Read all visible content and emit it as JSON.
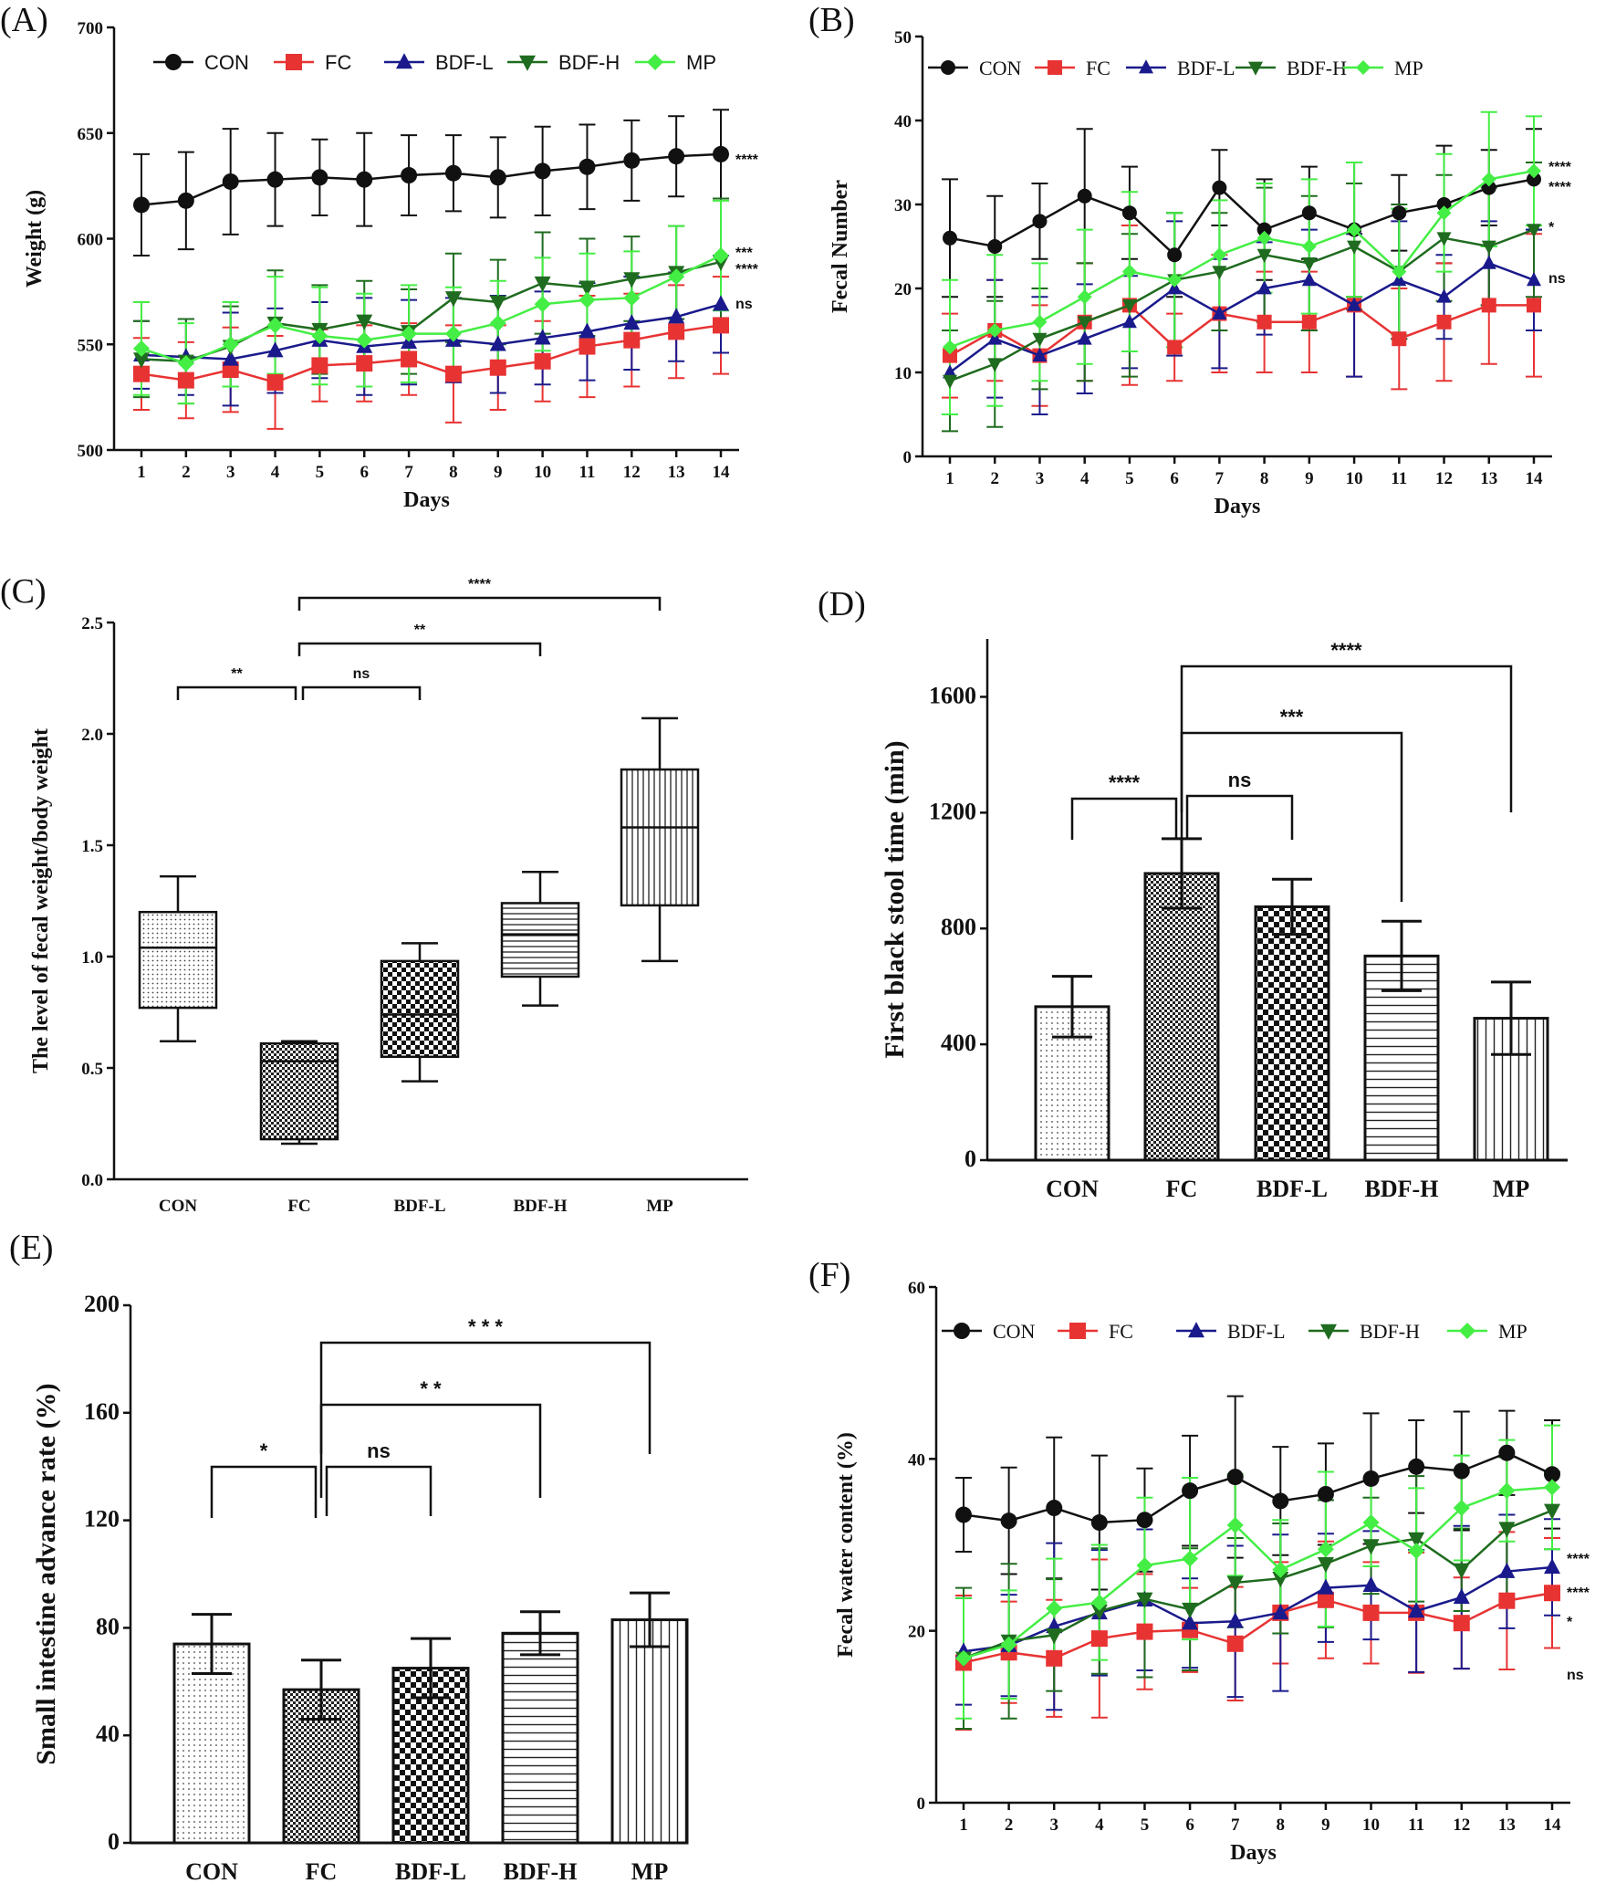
{
  "colors": {
    "CON": "#111111",
    "FC": "#e83333",
    "BDF-L": "#1a1a8c",
    "BDF-H": "#1f6b1f",
    "MP": "#44ee44"
  },
  "chart_data": [
    {
      "id": "A",
      "panel_label": "(A)",
      "type": "line",
      "xlabel": "Days",
      "ylabel": "Weight (g)",
      "ylim": [
        500,
        700
      ],
      "yticks": [
        500,
        550,
        600,
        650,
        700
      ],
      "x": [
        1,
        2,
        3,
        4,
        5,
        6,
        7,
        8,
        9,
        10,
        11,
        12,
        13,
        14
      ],
      "legend": [
        "CON",
        "FC",
        "BDF-L",
        "BDF-H",
        "MP"
      ],
      "series": [
        {
          "name": "CON",
          "values": [
            616,
            618,
            627,
            628,
            629,
            628,
            630,
            631,
            629,
            632,
            634,
            637,
            639,
            640
          ],
          "err": [
            24,
            23,
            25,
            22,
            18,
            22,
            19,
            18,
            19,
            21,
            20,
            19,
            19,
            21
          ]
        },
        {
          "name": "FC",
          "values": [
            536,
            533,
            538,
            532,
            540,
            541,
            543,
            536,
            539,
            542,
            549,
            552,
            556,
            559
          ],
          "err": [
            17,
            18,
            20,
            22,
            17,
            18,
            17,
            23,
            20,
            19,
            24,
            22,
            22,
            23
          ]
        },
        {
          "name": "BDF-L",
          "values": [
            545,
            544,
            543,
            547,
            552,
            549,
            551,
            552,
            550,
            553,
            556,
            560,
            563,
            569
          ],
          "err": [
            16,
            18,
            22,
            20,
            18,
            23,
            20,
            20,
            23,
            22,
            23,
            22,
            21,
            23
          ]
        },
        {
          "name": "BDF-H",
          "values": [
            543,
            542,
            549,
            560,
            557,
            561,
            556,
            572,
            570,
            579,
            577,
            581,
            584,
            589
          ],
          "err": [
            18,
            20,
            19,
            25,
            21,
            19,
            20,
            21,
            20,
            24,
            23,
            20,
            22,
            30
          ]
        },
        {
          "name": "MP",
          "values": [
            548,
            541,
            550,
            559,
            554,
            552,
            555,
            555,
            560,
            569,
            571,
            572,
            582,
            592
          ],
          "err": [
            22,
            19,
            20,
            23,
            23,
            22,
            23,
            22,
            20,
            22,
            22,
            22,
            24,
            26
          ]
        }
      ],
      "annotations": [
        "****",
        "***",
        "****",
        "ns"
      ]
    },
    {
      "id": "B",
      "panel_label": "(B)",
      "type": "line",
      "xlabel": "Days",
      "ylabel": "Fecal Number",
      "ylim": [
        0,
        50
      ],
      "yticks": [
        0,
        10,
        20,
        30,
        40,
        50
      ],
      "x": [
        1,
        2,
        3,
        4,
        5,
        6,
        7,
        8,
        9,
        10,
        11,
        12,
        13,
        14
      ],
      "legend": [
        "CON",
        "FC",
        "BDF-L",
        "BDF-H",
        "MP"
      ],
      "series": [
        {
          "name": "CON",
          "values": [
            26,
            25,
            28,
            31,
            29,
            24,
            32,
            27,
            29,
            27,
            29,
            30,
            32,
            33
          ],
          "err": [
            7,
            6,
            4.5,
            8,
            5.5,
            5,
            4.5,
            6,
            5.5,
            8,
            4.5,
            7,
            4.5,
            6
          ]
        },
        {
          "name": "FC",
          "values": [
            12,
            15,
            12,
            16,
            18,
            13,
            17,
            16,
            16,
            18,
            14,
            16,
            18,
            18
          ],
          "err": [
            5,
            6,
            6,
            7,
            9.5,
            4,
            7,
            6,
            6,
            8.5,
            6,
            7,
            7,
            8.5
          ]
        },
        {
          "name": "BDF-L",
          "values": [
            10,
            14,
            12,
            14,
            16,
            20,
            17,
            20,
            21,
            18,
            21,
            19,
            23,
            21
          ],
          "err": [
            5,
            7,
            7,
            6.5,
            5.5,
            8,
            6.5,
            5.5,
            6,
            8.5,
            7,
            5,
            5,
            6
          ]
        },
        {
          "name": "BDF-H",
          "values": [
            9,
            11,
            14,
            16,
            18,
            21,
            22,
            24,
            23,
            25,
            22,
            26,
            25,
            27
          ],
          "err": [
            6,
            7.5,
            6,
            7,
            8.5,
            8,
            7,
            8,
            8,
            7.5,
            8,
            7.5,
            7,
            8
          ]
        },
        {
          "name": "MP",
          "values": [
            13,
            15,
            16,
            19,
            22,
            21,
            24,
            26,
            25,
            27,
            22,
            29,
            33,
            34
          ],
          "err": [
            8,
            9,
            7,
            8,
            9.5,
            8,
            6.5,
            6.5,
            8,
            8,
            7.5,
            7,
            8,
            6.5
          ]
        }
      ],
      "annotations": [
        "****",
        "****",
        "*",
        "ns"
      ]
    },
    {
      "id": "C",
      "panel_label": "(C)",
      "type": "box",
      "ylabel": "The level of fecal weight/body weight",
      "ylim": [
        0,
        2.5
      ],
      "yticks": [
        0.0,
        0.5,
        1.0,
        1.5,
        2.0,
        2.5
      ],
      "categories": [
        "CON",
        "FC",
        "BDF-L",
        "BDF-H",
        "MP"
      ],
      "boxes": [
        {
          "name": "CON",
          "min": 0.62,
          "q1": 0.77,
          "median": 1.04,
          "q3": 1.2,
          "max": 1.36
        },
        {
          "name": "FC",
          "min": 0.16,
          "q1": 0.18,
          "median": 0.53,
          "q3": 0.61,
          "max": 0.62
        },
        {
          "name": "BDF-L",
          "min": 0.44,
          "q1": 0.55,
          "median": 0.74,
          "q3": 0.98,
          "max": 1.06
        },
        {
          "name": "BDF-H",
          "min": 0.78,
          "q1": 0.91,
          "median": 1.1,
          "q3": 1.24,
          "max": 1.38
        },
        {
          "name": "MP",
          "min": 0.98,
          "q1": 1.23,
          "median": 1.58,
          "q3": 1.84,
          "max": 2.07
        }
      ],
      "comparisons": [
        {
          "from": "CON",
          "to": "FC",
          "label": "**"
        },
        {
          "from": "FC",
          "to": "BDF-L",
          "label": "ns"
        },
        {
          "from": "FC",
          "to": "BDF-H",
          "label": "**"
        },
        {
          "from": "FC",
          "to": "MP",
          "label": "****"
        }
      ]
    },
    {
      "id": "D",
      "panel_label": "(D)",
      "type": "bar",
      "ylabel": "First black stool time (min)",
      "ylim": [
        0,
        1800
      ],
      "yticks": [
        0,
        400,
        800,
        1200,
        1600
      ],
      "categories": [
        "CON",
        "FC",
        "BDF-L",
        "BDF-H",
        "MP"
      ],
      "values": [
        530,
        990,
        875,
        705,
        490
      ],
      "err": [
        105,
        120,
        95,
        120,
        125
      ],
      "comparisons": [
        {
          "from": "CON",
          "to": "FC",
          "label": "****"
        },
        {
          "from": "FC",
          "to": "BDF-L",
          "label": "ns"
        },
        {
          "from": "FC",
          "to": "BDF-H",
          "label": "***"
        },
        {
          "from": "FC",
          "to": "MP",
          "label": "****"
        }
      ]
    },
    {
      "id": "E",
      "panel_label": "(E)",
      "type": "bar",
      "ylabel": "Small intestine advance rate (%)",
      "ylim": [
        0,
        200
      ],
      "yticks": [
        0,
        40,
        80,
        120,
        160,
        200
      ],
      "categories": [
        "CON",
        "FC",
        "BDF-L",
        "BDF-H",
        "MP"
      ],
      "values": [
        74,
        57,
        65,
        78,
        83
      ],
      "err": [
        11,
        11,
        11,
        8,
        10
      ],
      "comparisons": [
        {
          "from": "CON",
          "to": "FC",
          "label": "*"
        },
        {
          "from": "FC",
          "to": "BDF-L",
          "label": "ns"
        },
        {
          "from": "FC",
          "to": "BDF-H",
          "label": "* *"
        },
        {
          "from": "FC",
          "to": "MP",
          "label": "* * *"
        }
      ]
    },
    {
      "id": "F",
      "panel_label": "(F)",
      "type": "line",
      "xlabel": "Days",
      "ylabel": "Fecal water content (%)",
      "ylim": [
        0,
        60
      ],
      "yticks": [
        0,
        20,
        40,
        60
      ],
      "x": [
        1,
        2,
        3,
        4,
        5,
        6,
        7,
        8,
        9,
        10,
        11,
        12,
        13,
        14
      ],
      "legend": [
        "CON",
        "FC",
        "BDF-L",
        "BDF-H",
        "MP"
      ],
      "series": [
        {
          "name": "CON",
          "values": [
            33.5,
            32.8,
            34.3,
            32.6,
            32.9,
            36.3,
            37.9,
            35.1,
            35.9,
            37.7,
            39.1,
            38.6,
            40.7,
            38.2
          ],
          "err": [
            4.3,
            6.2,
            8.2,
            7.8,
            6,
            6.4,
            9.4,
            6.3,
            5.9,
            7.6,
            5.4,
            6.9,
            4.9,
            6.3
          ]
        },
        {
          "name": "FC",
          "values": [
            16.3,
            17.5,
            16.8,
            19.1,
            19.9,
            20.1,
            18.5,
            22.1,
            23.6,
            22.1,
            22.1,
            20.9,
            23.5,
            24.4
          ],
          "err": [
            7.8,
            5.9,
            6.8,
            9.2,
            6.7,
            4.9,
            6.6,
            5.9,
            6.8,
            5.9,
            7,
            5.3,
            8,
            6.4
          ]
        },
        {
          "name": "BDF-L",
          "values": [
            17.6,
            18.3,
            20.5,
            22.1,
            23.6,
            20.9,
            21.1,
            22.1,
            25,
            25.3,
            22.3,
            23.9,
            26.9,
            27.4
          ],
          "err": [
            6.2,
            5.9,
            9.7,
            7.3,
            8.2,
            5.2,
            8.8,
            9.1,
            6.3,
            6.3,
            7.1,
            8.3,
            6.6,
            5.6
          ]
        },
        {
          "name": "BDF-H",
          "values": [
            16.8,
            18.8,
            19.5,
            22.3,
            23.7,
            22.5,
            25.6,
            26.1,
            27.8,
            29.9,
            30.7,
            27.1,
            31.9,
            34.0
          ],
          "err": [
            8.2,
            9,
            6.5,
            7.3,
            9.1,
            7.1,
            5.2,
            6.4,
            7.4,
            5.6,
            7.3,
            4.8,
            8.3,
            4.5
          ]
        },
        {
          "name": "MP",
          "values": [
            16.8,
            18.4,
            22.6,
            23.3,
            27.6,
            28.4,
            32.3,
            27.1,
            29.5,
            32.6,
            29.3,
            34.3,
            36.3,
            36.7
          ],
          "err": [
            7,
            6.3,
            5.8,
            6.7,
            7.9,
            9.4,
            5.9,
            5.8,
            9,
            5.1,
            7.3,
            6.1,
            5.9,
            7.2
          ]
        }
      ],
      "annotations": [
        "****",
        "****",
        "*",
        "ns"
      ]
    }
  ]
}
